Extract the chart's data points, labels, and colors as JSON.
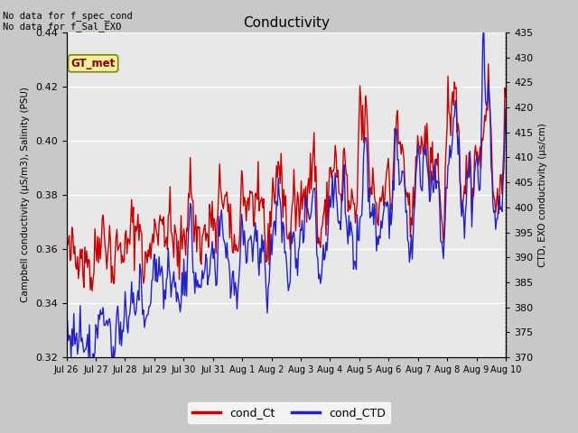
{
  "title": "Conductivity",
  "ylabel_left": "Campbell conductivity (μS/m3), Salinity (PSU)",
  "ylabel_right": "CTD, EXO conductivity (μs/cm)",
  "ylim_left": [
    0.32,
    0.44
  ],
  "ylim_right": [
    370,
    435
  ],
  "yticks_left": [
    0.32,
    0.34,
    0.36,
    0.38,
    0.4,
    0.42,
    0.44
  ],
  "yticks_right": [
    370,
    375,
    380,
    385,
    390,
    395,
    400,
    405,
    410,
    415,
    420,
    425,
    430,
    435
  ],
  "annotation_text": "No data for f_spec_cond\nNo data for f_Sal_EXO",
  "gt_met_label": "GT_met",
  "legend_labels": [
    "cond_Ct",
    "cond_CTD"
  ],
  "legend_colors": [
    "#cc0000",
    "#2222cc"
  ],
  "fig_bg_color": "#c8c8c8",
  "plot_bg_color": "#e8e8e8",
  "grid_color": "#ffffff",
  "xtick_labels": [
    "Jul 26",
    "Jul 27",
    "Jul 28",
    "Jul 29",
    "Jul 30",
    "Jul 31",
    "Aug 1",
    "Aug 2",
    "Aug 3",
    "Aug 4",
    "Aug 5",
    "Aug 6",
    "Aug 7",
    "Aug 8",
    "Aug 9",
    "Aug 10"
  ],
  "n_points": 480
}
